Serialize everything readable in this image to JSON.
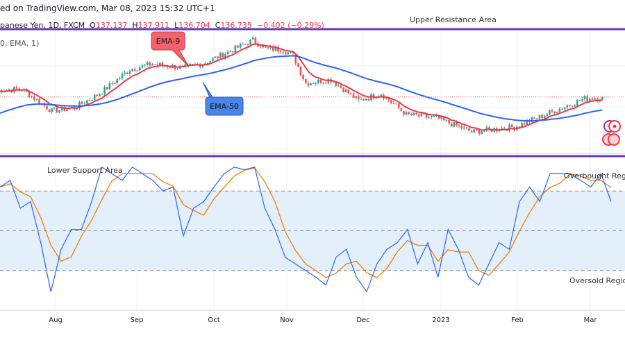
{
  "header": {
    "published": "ed on TradingView.com, Mar 08, 2023 15:32 UTC+1"
  },
  "symbol": {
    "name": "panese Yen, 1D, FXCM",
    "o_label": "O",
    "open": "137.137",
    "h_label": "H",
    "high": "137.911",
    "l_label": "L",
    "low": "136.704",
    "c_label": "C",
    "close": "136.735",
    "change": "−0.402 (−0.29%)"
  },
  "indicator": {
    "label": "0, EMA, 1)"
  },
  "colors": {
    "up": "#26a69a",
    "down": "#ef5350",
    "ema9": "#f23645",
    "ema50": "#2962ff",
    "osc_fast": "#2962ff",
    "osc_slow": "#f57c00",
    "zone_line": "#673ab7",
    "band": "#e3f0fb"
  },
  "annotations": {
    "upper": "Upper Resistance Area",
    "lower": "Lower Support Area",
    "ema9": "EMA-9",
    "ema50": "EMA-50",
    "overbought": "Overbought Region",
    "oversold": "Oversold Region"
  },
  "chart_data": [
    {
      "type": "candlestick",
      "title": "",
      "x_ticks": [
        "Aug",
        "Sep",
        "Oct",
        "Nov",
        "Dec",
        "2023",
        "Feb",
        "Mar"
      ],
      "close_path": [
        [
          "2022-07-10",
          138.5
        ],
        [
          "2022-07-20",
          138.8
        ],
        [
          "2022-08-01",
          133.1
        ],
        [
          "2022-08-10",
          134.0
        ],
        [
          "2022-08-20",
          137.6
        ],
        [
          "2022-09-01",
          143.8
        ],
        [
          "2022-09-10",
          145.3
        ],
        [
          "2022-09-22",
          144.2
        ],
        [
          "2022-10-01",
          145.6
        ],
        [
          "2022-10-10",
          148.3
        ],
        [
          "2022-10-20",
          151.4
        ],
        [
          "2022-10-25",
          149.2
        ],
        [
          "2022-11-01",
          148.9
        ],
        [
          "2022-11-05",
          147.4
        ],
        [
          "2022-11-10",
          140.3
        ],
        [
          "2022-11-20",
          141.2
        ],
        [
          "2022-12-01",
          135.8
        ],
        [
          "2022-12-10",
          137.6
        ],
        [
          "2022-12-20",
          132.2
        ],
        [
          "2023-01-01",
          131.3
        ],
        [
          "2023-01-15",
          127.7
        ],
        [
          "2023-02-01",
          129.0
        ],
        [
          "2023-02-10",
          131.3
        ],
        [
          "2023-02-20",
          134.0
        ],
        [
          "2023-03-01",
          136.3
        ],
        [
          "2023-03-08",
          136.7
        ]
      ],
      "last_close": 136.735,
      "series": [
        {
          "name": "EMA-9",
          "period": 9
        },
        {
          "name": "EMA-50",
          "period": 50
        }
      ],
      "ylim": [
        125,
        155
      ]
    },
    {
      "type": "line",
      "title": "",
      "ylim": [
        0,
        100
      ],
      "levels": [
        80,
        50,
        20
      ],
      "fast": [
        83,
        88,
        67,
        72,
        41,
        4,
        36,
        51,
        51,
        72,
        98,
        93,
        88,
        98,
        93,
        88,
        80,
        83,
        46,
        67,
        72,
        83,
        93,
        98,
        96,
        98,
        67,
        51,
        30,
        25,
        20,
        15,
        9,
        30,
        36,
        15,
        4,
        25,
        36,
        41,
        51,
        25,
        41,
        15,
        51,
        36,
        15,
        9,
        25,
        41,
        36,
        72,
        83,
        72,
        93,
        93,
        93,
        88,
        83,
        93,
        72
      ]
    }
  ]
}
